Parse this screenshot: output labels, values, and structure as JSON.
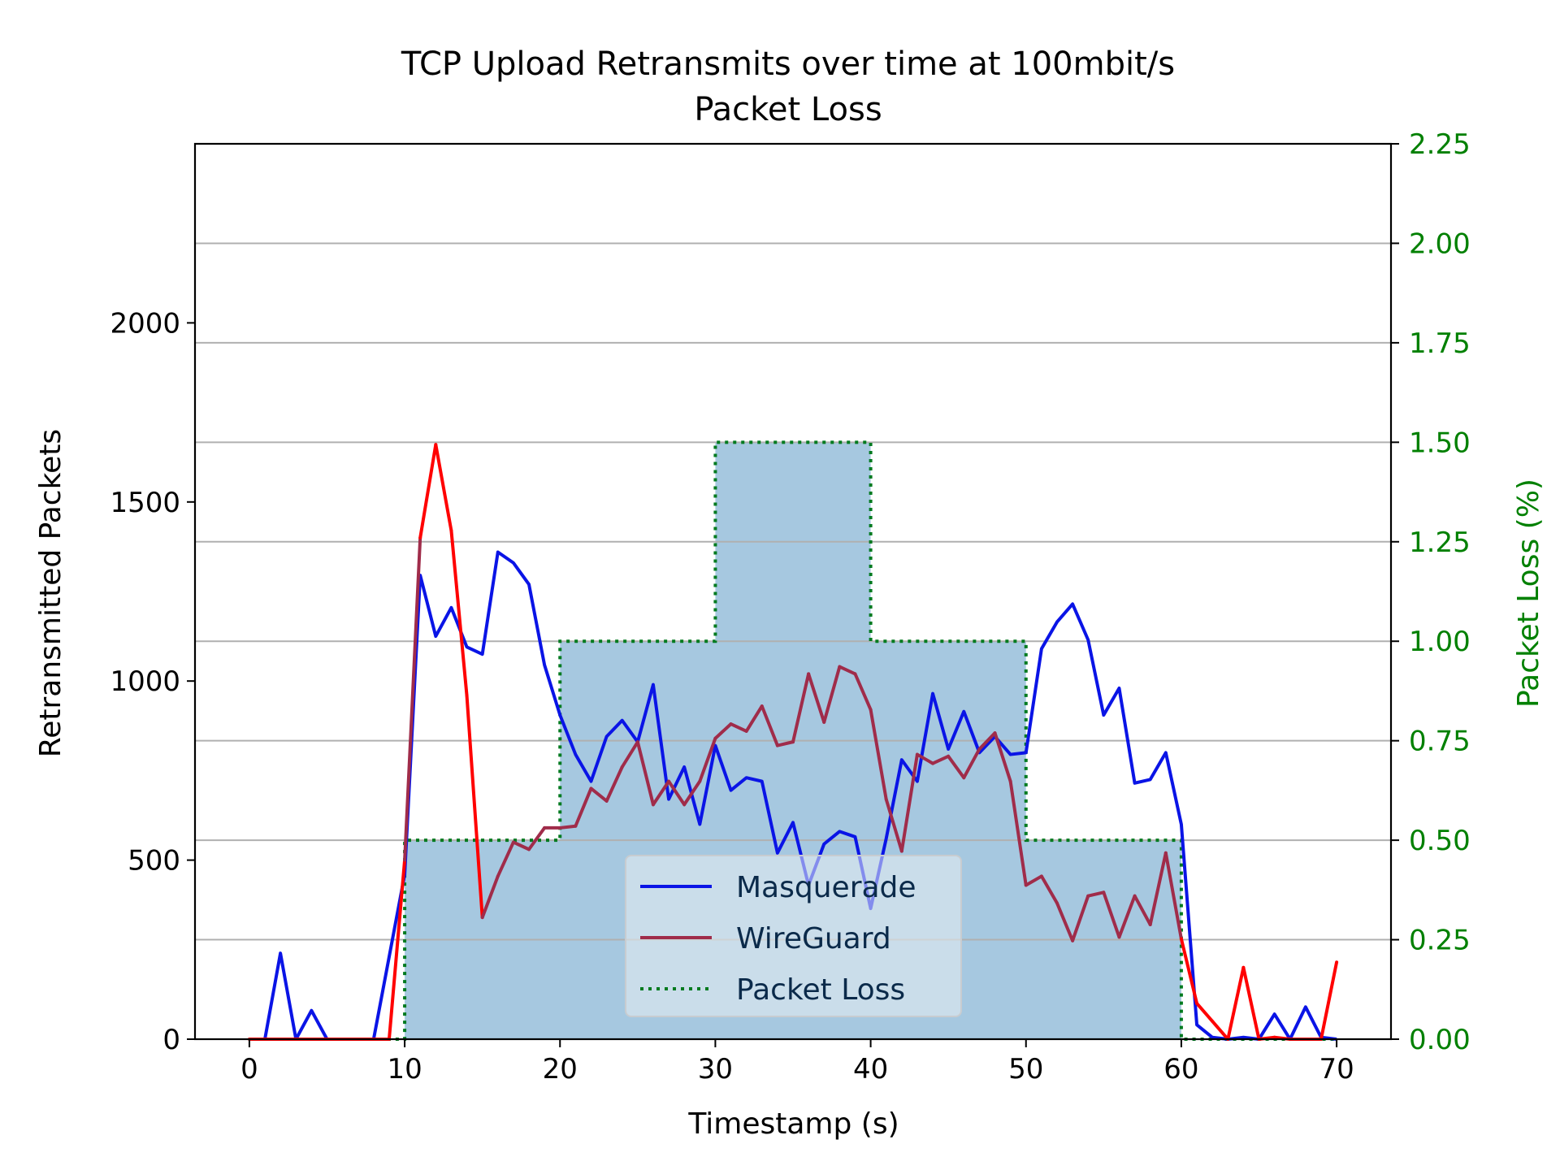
{
  "chart_data": {
    "type": "line",
    "title": "TCP Upload Retransmits over time at 100mbit/s",
    "subtitle": "Packet Loss",
    "xlabel": "Timestamp (s)",
    "ylabel": "Retransmitted Packets",
    "y2label": "Packet Loss (%)",
    "xlim": [
      -3.5,
      73.5
    ],
    "ylim": [
      0,
      2500
    ],
    "y2lim": [
      0,
      2.25
    ],
    "x_ticks": [
      0,
      10,
      20,
      30,
      40,
      50,
      60,
      70
    ],
    "y_ticks": [
      0,
      500,
      1000,
      1500,
      2000
    ],
    "y2_ticks": [
      "0.00",
      "0.25",
      "0.50",
      "0.75",
      "1.00",
      "1.25",
      "1.50",
      "1.75",
      "2.00",
      "2.25"
    ],
    "grid": "horizontal on secondary axis",
    "legend_position": "bottom-center",
    "colors": {
      "masquerade": "#0a14e6",
      "wireguard": "#a02c4a",
      "wireguard_outside_loss": "#ff0000",
      "packet_loss_line": "#007a1f",
      "packet_loss_fill": "#a6c8e0",
      "secondary_axis": "#008000",
      "grid": "#b0b0b0"
    },
    "series": [
      {
        "name": "Masquerade",
        "axis": "left",
        "x": [
          0,
          1,
          2,
          3,
          4,
          5,
          6,
          7,
          8,
          9,
          10,
          11,
          12,
          13,
          14,
          15,
          16,
          17,
          18,
          19,
          20,
          21,
          22,
          23,
          24,
          25,
          26,
          27,
          28,
          29,
          30,
          31,
          32,
          33,
          34,
          35,
          36,
          37,
          38,
          39,
          40,
          41,
          42,
          43,
          44,
          45,
          46,
          47,
          48,
          49,
          50,
          51,
          52,
          53,
          54,
          55,
          56,
          57,
          58,
          59,
          60,
          61,
          62,
          63,
          64,
          65,
          66,
          67,
          68,
          69,
          70
        ],
        "values": [
          0,
          0,
          240,
          0,
          80,
          0,
          0,
          0,
          0,
          230,
          460,
          1295,
          1125,
          1205,
          1095,
          1075,
          1360,
          1330,
          1270,
          1045,
          905,
          795,
          720,
          845,
          890,
          830,
          990,
          670,
          760,
          600,
          820,
          695,
          730,
          720,
          520,
          605,
          430,
          545,
          580,
          565,
          365,
          560,
          780,
          720,
          965,
          810,
          915,
          800,
          845,
          795,
          800,
          1090,
          1165,
          1215,
          1115,
          905,
          980,
          715,
          725,
          800,
          600,
          40,
          5,
          0,
          5,
          0,
          70,
          0,
          90,
          5,
          0
        ]
      },
      {
        "name": "WireGuard",
        "axis": "left",
        "x": [
          0,
          1,
          2,
          3,
          4,
          5,
          6,
          7,
          8,
          9,
          10,
          11,
          12,
          13,
          14,
          15,
          16,
          17,
          18,
          19,
          20,
          21,
          22,
          23,
          24,
          25,
          26,
          27,
          28,
          29,
          30,
          31,
          32,
          33,
          34,
          35,
          36,
          37,
          38,
          39,
          40,
          41,
          42,
          43,
          44,
          45,
          46,
          47,
          48,
          49,
          50,
          51,
          52,
          53,
          54,
          55,
          56,
          57,
          58,
          59,
          60,
          61,
          62,
          63,
          64,
          65,
          66,
          67,
          68,
          69,
          70
        ],
        "values": [
          0,
          0,
          0,
          0,
          0,
          0,
          0,
          0,
          0,
          0,
          500,
          1400,
          1660,
          1420,
          960,
          340,
          455,
          550,
          530,
          590,
          590,
          595,
          700,
          665,
          760,
          830,
          655,
          720,
          655,
          720,
          840,
          880,
          860,
          930,
          820,
          830,
          1020,
          885,
          1040,
          1020,
          920,
          670,
          525,
          795,
          770,
          790,
          730,
          810,
          855,
          720,
          430,
          455,
          380,
          275,
          400,
          410,
          285,
          400,
          320,
          520,
          280,
          100,
          50,
          0,
          200,
          0,
          5,
          0,
          0,
          0,
          215
        ],
        "outside_loss_color": "#ff0000"
      },
      {
        "name": "Packet Loss",
        "axis": "right",
        "style": "dotted step with filled area",
        "x": [
          0,
          10,
          10,
          20,
          20,
          30,
          30,
          40,
          40,
          50,
          50,
          60,
          60,
          70
        ],
        "values": [
          0,
          0,
          0.5,
          0.5,
          1.0,
          1.0,
          1.5,
          1.5,
          1.0,
          1.0,
          0.5,
          0.5,
          0,
          0
        ]
      }
    ]
  }
}
